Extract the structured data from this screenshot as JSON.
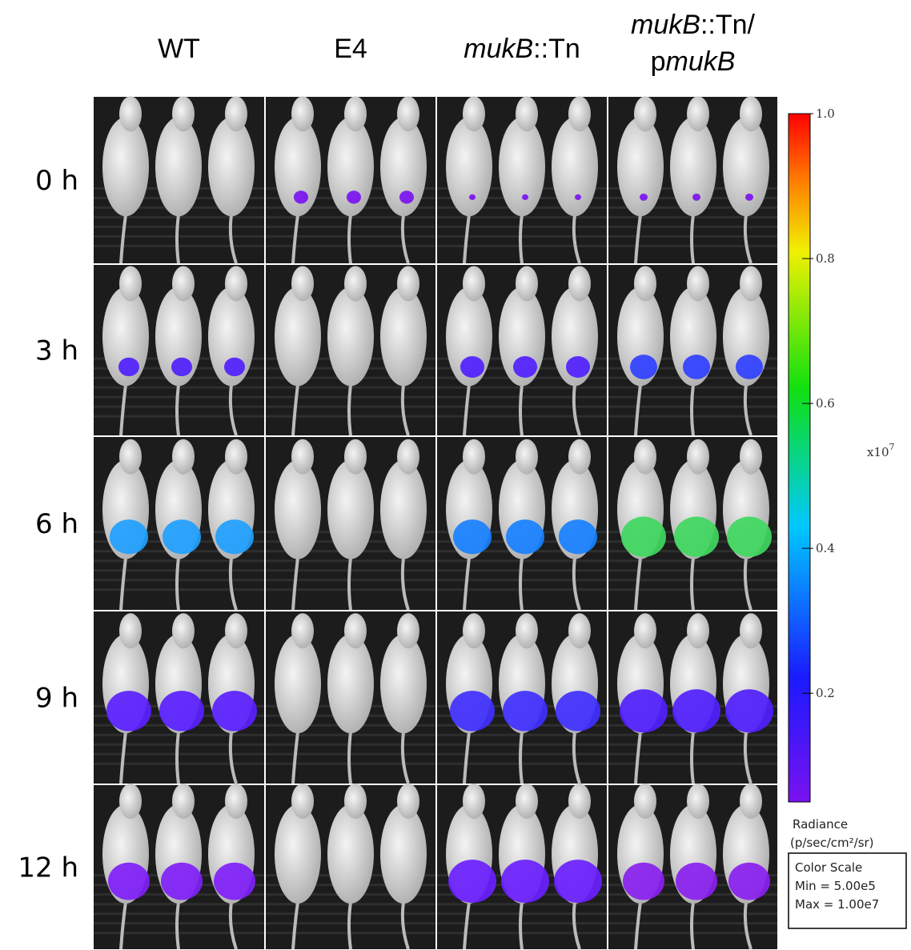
{
  "columns": [
    {
      "lines": [
        {
          "parts": [
            {
              "text": "WT"
            }
          ]
        }
      ]
    },
    {
      "lines": [
        {
          "parts": [
            {
              "text": "E4"
            }
          ]
        }
      ]
    },
    {
      "lines": [
        {
          "parts": [
            {
              "text": "mukB",
              "italic": true
            },
            {
              "text": "::Tn"
            }
          ]
        }
      ]
    },
    {
      "lines": [
        {
          "parts": [
            {
              "text": "mukB",
              "italic": true
            },
            {
              "text": "::Tn/"
            }
          ]
        },
        {
          "parts": [
            {
              "text": "p"
            },
            {
              "text": "mukB",
              "italic": true
            }
          ]
        }
      ]
    }
  ],
  "rows": [
    "0 h",
    "3 h",
    "6 h",
    "9 h",
    "12 h"
  ],
  "colorbar": {
    "lim": [
      0.05,
      1.0
    ],
    "ticks": [
      {
        "value": 1.0,
        "label": "1.0"
      },
      0.8,
      0.6,
      0.4,
      0.2
    ],
    "multiplier": "x10",
    "exponent": "7"
  },
  "radiance": {
    "title": "Radiance",
    "unit": "(p/sec/cm²/sr)"
  },
  "scale_box": {
    "title": "Color Scale",
    "min": "Min = 5.00e5",
    "max": "Max = 1.00e7"
  }
}
